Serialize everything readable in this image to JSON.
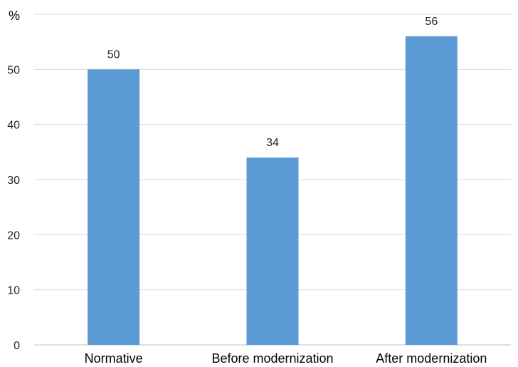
{
  "chart_data": {
    "type": "bar",
    "y_unit_label": "%",
    "categories": [
      "Normative",
      "Before modernization",
      "After modernization"
    ],
    "values": [
      50,
      34,
      56
    ],
    "ylim": [
      0,
      60
    ],
    "yticks": [
      0,
      10,
      20,
      30,
      40,
      50
    ],
    "grid": true,
    "legend": "none",
    "bar_color": "#5b9bd5"
  }
}
